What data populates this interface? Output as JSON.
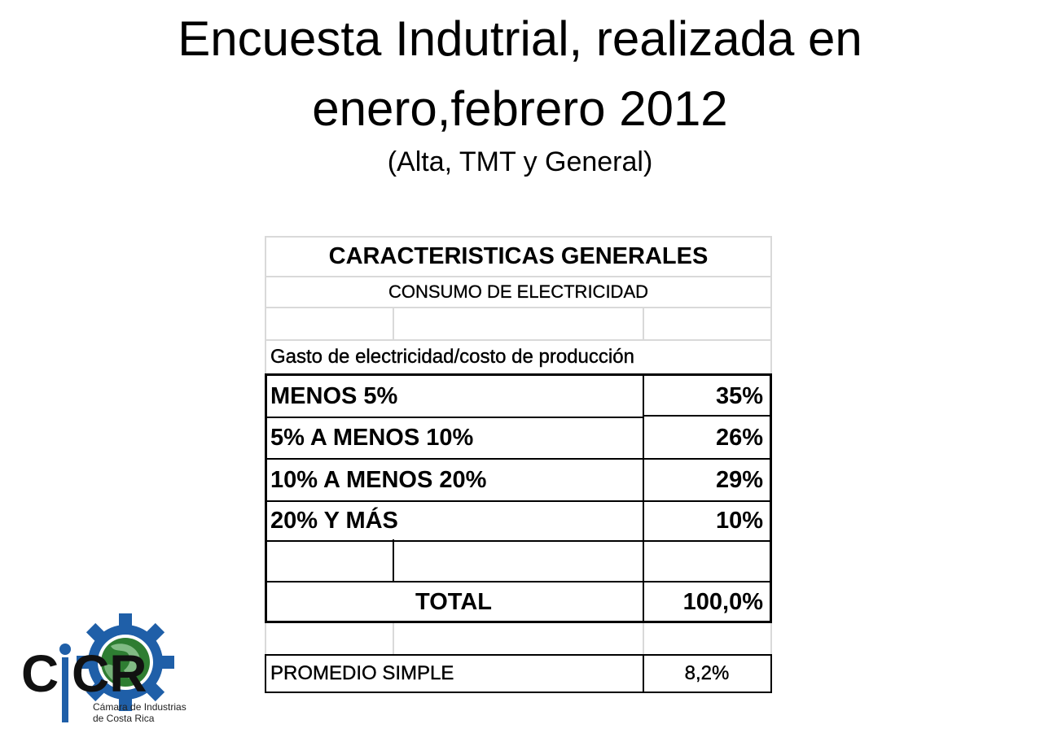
{
  "title": {
    "line1": "Encuesta Indutrial, realizada en",
    "line2": "enero,febrero 2012",
    "line3": "(Alta, TMT y General)"
  },
  "table": {
    "heading": "CARACTERISTICAS GENERALES",
    "subheading": "CONSUMO DE ELECTRICIDAD",
    "section_label": "Gasto de electricidad/costo de producción",
    "rows": [
      {
        "label": "MENOS 5%",
        "value": "35%"
      },
      {
        "label": "5% A MENOS 10%",
        "value": "26%"
      },
      {
        "label": "10% A MENOS 20%",
        "value": "29%"
      },
      {
        "label": "20% Y MÁS",
        "value": "10%"
      }
    ],
    "total_label": "TOTAL",
    "total_value": "100,0%",
    "average_label": "PROMEDIO SIMPLE",
    "average_value": "8,2%"
  },
  "logo": {
    "acronym": "CICR",
    "name_line1": "Cámara de Industrias",
    "name_line2": "de Costa Rica",
    "colors": {
      "gear": "#1f5fa8",
      "globe": "#2e7d32",
      "text": "#111111"
    }
  }
}
